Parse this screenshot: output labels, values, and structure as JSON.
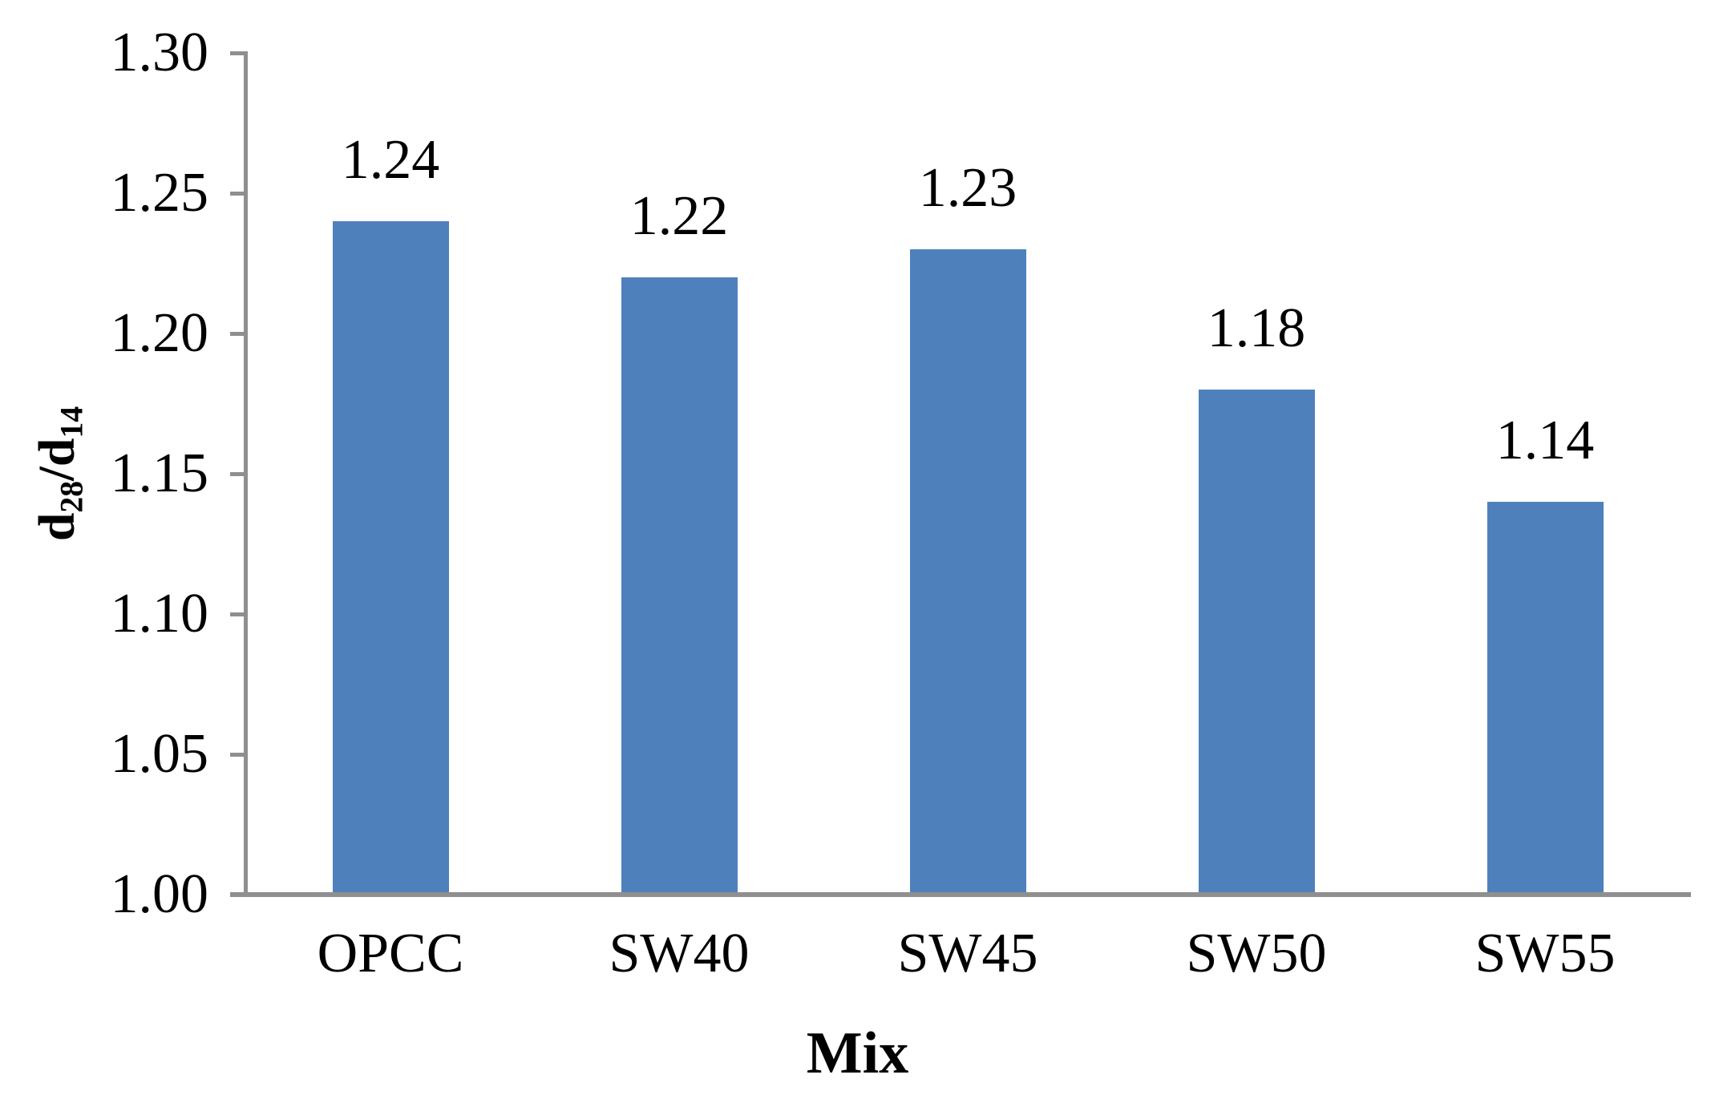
{
  "chart_data": {
    "type": "bar",
    "categories": [
      "OPCC",
      "SW40",
      "SW45",
      "SW50",
      "SW55"
    ],
    "values": [
      1.24,
      1.22,
      1.23,
      1.18,
      1.14
    ],
    "bar_labels": [
      "1.24",
      "1.22",
      "1.23",
      "1.18",
      "1.14"
    ],
    "title": "",
    "xlabel": "Mix",
    "ylabel": "d28/d14",
    "ylabel_rich": {
      "base": "d",
      "sub1": "28",
      "mid": "/d",
      "sub2": "14"
    },
    "ylim": [
      1.0,
      1.3
    ],
    "ytick_step": 0.05,
    "ytick_labels": [
      "1.00",
      "1.05",
      "1.10",
      "1.15",
      "1.20",
      "1.25",
      "1.30"
    ],
    "grid": false,
    "legend": null,
    "bar_color": "#4e80bc",
    "axis_color": "#8f8f8f",
    "text_color": "#000000"
  }
}
